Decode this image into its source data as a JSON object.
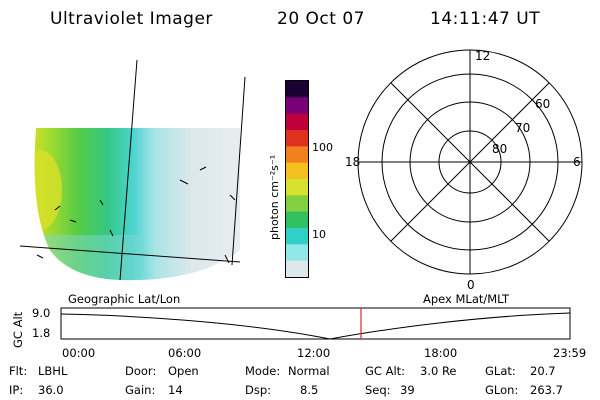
{
  "header": {
    "title": "Ultraviolet Imager",
    "date": "20 Oct 07",
    "time": "14:11:47 UT"
  },
  "colorbar": {
    "unit_label": "photon cm⁻²s⁻¹",
    "ticks": [
      "100",
      "10"
    ],
    "colors": [
      "#1a0033",
      "#7a0077",
      "#c0003a",
      "#e03020",
      "#f08020",
      "#f4c020",
      "#d8e030",
      "#80d040",
      "#30c060",
      "#30d0c8",
      "#90e8e8",
      "#dde8ec"
    ]
  },
  "polar_plot": {
    "mlt_labels": {
      "top": "12",
      "right": "6",
      "bottom": "0",
      "left": "18"
    },
    "lat_labels": [
      "60",
      "70",
      "80"
    ]
  },
  "altitude_plot": {
    "left_label": "Geographic Lat/Lon",
    "right_label": "Apex MLat/MLT",
    "axis_title": "GC Alt",
    "y_ticks": [
      "9.0",
      "1.8"
    ],
    "x_ticks": [
      "00:00",
      "06:00",
      "12:00",
      "18:00",
      "23:59"
    ]
  },
  "status": {
    "flt": {
      "label": "Flt:",
      "value": "LBHL"
    },
    "ip": {
      "label": "IP:",
      "value": "36.0"
    },
    "door": {
      "label": "Door:",
      "value": "Open"
    },
    "gain": {
      "label": "Gain:",
      "value": "14"
    },
    "mode": {
      "label": "Mode:",
      "value": "Normal"
    },
    "dsp": {
      "label": "Dsp:",
      "value": "8.5"
    },
    "gcalt": {
      "label": "GC Alt:",
      "value": "3.0 Re"
    },
    "seq": {
      "label": "Seq:",
      "value": "39"
    },
    "glat": {
      "label": "GLat:",
      "value": "20.7"
    },
    "glon": {
      "label": "GLon:",
      "value": "263.7"
    }
  }
}
